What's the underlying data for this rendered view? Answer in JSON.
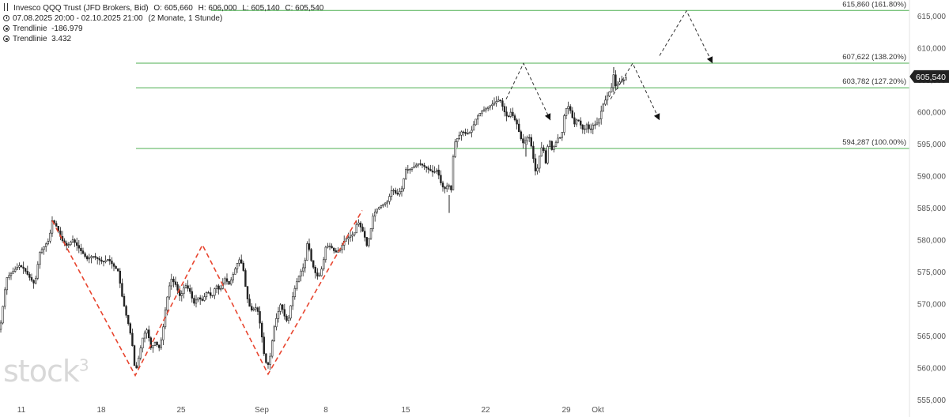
{
  "header": {
    "title": "Invesco QQQ Trust (JFD Brokers, Bid)",
    "open": "O: 605,660",
    "high": "H: 606,000",
    "low": "L: 605,140",
    "close": "C: 605,540",
    "range": "07.08.2025 20:00 - 02.10.2025 21:00",
    "interval": "(2 Monate, 1 Stunde)",
    "indicators": [
      "Trendlinie  -186.979",
      "Trendlinie  3.432"
    ]
  },
  "logo": {
    "text": "stock",
    "sup": "3"
  },
  "chart_data": {
    "type": "line",
    "y_ticks": [
      "555,000",
      "560,000",
      "565,000",
      "570,000",
      "575,000",
      "580,000",
      "585,000",
      "590,000",
      "595,000",
      "600,000",
      "605,000",
      "610,000",
      "615,000"
    ],
    "y_tick_values": [
      555,
      560,
      565,
      570,
      575,
      580,
      585,
      590,
      595,
      600,
      605,
      610,
      615
    ],
    "ylim": [
      552.3,
      617.5
    ],
    "x_ticks": [
      "11",
      "18",
      "25",
      "Sep",
      "8",
      "15",
      "22",
      "29",
      "Okt"
    ],
    "current_price": {
      "label": "605,540",
      "value": 605.54
    },
    "fib_levels": [
      {
        "label": "615,860 (161.80%)",
        "value": 615.86
      },
      {
        "label": "607,622 (138.20%)",
        "value": 607.622
      },
      {
        "label": "603,782 (127.20%)",
        "value": 603.782
      },
      {
        "label": "594,287 (100.00%)",
        "value": 594.287
      }
    ],
    "price_path": [
      [
        0,
        566
      ],
      [
        4,
        570
      ],
      [
        8,
        574
      ],
      [
        16,
        575
      ],
      [
        24,
        576
      ],
      [
        30,
        575.5
      ],
      [
        38,
        574
      ],
      [
        44,
        573
      ],
      [
        50,
        578
      ],
      [
        56,
        579
      ],
      [
        62,
        580
      ],
      [
        66,
        583
      ],
      [
        72,
        582
      ],
      [
        78,
        580
      ],
      [
        85,
        579
      ],
      [
        92,
        580
      ],
      [
        98,
        579
      ],
      [
        104,
        578
      ],
      [
        110,
        577
      ],
      [
        117,
        577.5
      ],
      [
        124,
        577
      ],
      [
        130,
        576.5
      ],
      [
        137,
        577
      ],
      [
        143,
        576
      ],
      [
        150,
        575
      ],
      [
        153,
        572
      ],
      [
        158,
        569
      ],
      [
        164,
        566
      ],
      [
        168,
        563
      ],
      [
        171,
        559
      ],
      [
        176,
        562
      ],
      [
        181,
        565
      ],
      [
        186,
        566
      ],
      [
        191,
        563
      ],
      [
        196,
        564
      ],
      [
        202,
        563
      ],
      [
        206,
        566
      ],
      [
        210,
        570
      ],
      [
        216,
        574
      ],
      [
        222,
        573
      ],
      [
        228,
        571
      ],
      [
        234,
        573
      ],
      [
        240,
        572
      ],
      [
        245,
        570
      ],
      [
        250,
        571
      ],
      [
        256,
        570.5
      ],
      [
        262,
        572
      ],
      [
        268,
        571
      ],
      [
        273,
        573
      ],
      [
        278,
        572
      ],
      [
        284,
        574
      ],
      [
        290,
        573
      ],
      [
        296,
        575
      ],
      [
        302,
        577
      ],
      [
        307,
        576
      ],
      [
        310,
        573
      ],
      [
        314,
        570
      ],
      [
        318,
        569
      ],
      [
        325,
        569.5
      ],
      [
        330,
        566
      ],
      [
        334,
        562
      ],
      [
        338,
        560
      ],
      [
        342,
        562
      ],
      [
        346,
        566
      ],
      [
        350,
        568
      ],
      [
        355,
        570
      ],
      [
        360,
        568
      ],
      [
        364,
        567
      ],
      [
        368,
        570
      ],
      [
        374,
        573
      ],
      [
        380,
        575
      ],
      [
        385,
        576
      ],
      [
        389,
        580
      ],
      [
        393,
        577
      ],
      [
        398,
        575
      ],
      [
        403,
        574
      ],
      [
        408,
        576
      ],
      [
        412,
        579
      ],
      [
        418,
        579
      ],
      [
        424,
        578
      ],
      [
        430,
        578.5
      ],
      [
        436,
        580
      ],
      [
        442,
        580.5
      ],
      [
        448,
        581
      ],
      [
        452,
        583
      ],
      [
        456,
        582
      ],
      [
        460,
        581
      ],
      [
        464,
        579
      ],
      [
        468,
        581
      ],
      [
        472,
        584
      ],
      [
        478,
        585
      ],
      [
        484,
        585.5
      ],
      [
        490,
        586
      ],
      [
        496,
        588
      ],
      [
        502,
        587
      ],
      [
        508,
        588
      ],
      [
        513,
        591
      ],
      [
        518,
        591
      ],
      [
        524,
        591.5
      ],
      [
        530,
        592
      ],
      [
        536,
        591.5
      ],
      [
        542,
        591
      ],
      [
        548,
        590.5
      ],
      [
        553,
        591
      ],
      [
        557,
        589
      ],
      [
        561,
        588
      ],
      [
        564,
        588
      ],
      [
        567,
        589
      ],
      [
        570,
        587
      ],
      [
        574,
        595
      ],
      [
        579,
        596
      ],
      [
        584,
        597
      ],
      [
        590,
        596.5
      ],
      [
        596,
        597
      ],
      [
        602,
        599
      ],
      [
        608,
        600
      ],
      [
        614,
        600.5
      ],
      [
        620,
        601
      ],
      [
        626,
        601.5
      ],
      [
        632,
        602
      ],
      [
        638,
        600
      ],
      [
        642,
        599
      ],
      [
        646,
        600
      ],
      [
        650,
        599
      ],
      [
        654,
        598
      ],
      [
        658,
        596
      ],
      [
        662,
        595
      ],
      [
        666,
        596
      ],
      [
        670,
        596
      ],
      [
        674,
        593
      ],
      [
        678,
        590
      ],
      [
        682,
        593
      ],
      [
        686,
        595
      ],
      [
        690,
        592
      ],
      [
        694,
        596
      ],
      [
        698,
        594
      ],
      [
        702,
        595
      ],
      [
        706,
        596
      ],
      [
        710,
        596
      ],
      [
        714,
        600
      ],
      [
        718,
        601
      ],
      [
        722,
        600
      ],
      [
        726,
        598
      ],
      [
        730,
        599
      ],
      [
        734,
        598
      ],
      [
        738,
        597
      ],
      [
        742,
        598
      ],
      [
        746,
        597
      ],
      [
        750,
        598
      ],
      [
        754,
        598
      ],
      [
        758,
        599
      ],
      [
        762,
        601
      ],
      [
        766,
        602
      ],
      [
        770,
        603
      ],
      [
        774,
        604
      ],
      [
        776,
        606
      ],
      [
        778,
        604
      ],
      [
        782,
        604.5
      ],
      [
        786,
        605
      ],
      [
        790,
        605
      ],
      [
        794,
        606
      ]
    ],
    "trend_lines": [
      {
        "color": "#e8452f",
        "style": "dashed",
        "points": [
          [
            66,
            583
          ],
          [
            171,
            558.8
          ],
          [
            256,
            579.2
          ],
          [
            339,
            559
          ],
          [
            458,
            584.6
          ]
        ]
      }
    ],
    "projections": [
      {
        "color": "#333333",
        "style": "dashed",
        "points": [
          [
            640,
            602
          ],
          [
            662,
            607.6
          ],
          [
            696,
            598.7
          ]
        ]
      },
      {
        "color": "#333333",
        "style": "dashed",
        "points": [
          [
            772,
            602
          ],
          [
            800,
            607.6
          ],
          [
            834,
            598.7
          ]
        ]
      },
      {
        "color": "#333333",
        "style": "dashed",
        "points": [
          [
            834,
            608.8
          ],
          [
            868,
            615.8
          ],
          [
            901,
            607.6
          ]
        ]
      }
    ],
    "colors": {
      "fib": "#4caf50",
      "candle": "#222222",
      "trend": "#e8452f",
      "axis_text": "#555555",
      "grid": "#e5e5e5"
    }
  }
}
